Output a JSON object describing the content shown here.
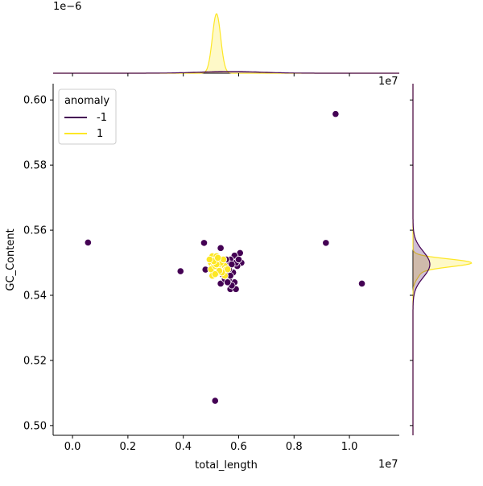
{
  "chart_data": {
    "type": "scatter",
    "title": "",
    "xlabel": "total_length",
    "ylabel": "GC_Content",
    "x_offset_label": "1e7",
    "y_offset_label": "",
    "top_marginal_offset_label": "1e−6",
    "right_marginal_offset_label": "1e7",
    "xlim": [
      -700000,
      11800000
    ],
    "ylim": [
      0.497,
      0.605
    ],
    "xticks": [
      {
        "value": 0,
        "label": "0.0"
      },
      {
        "value": 2000000,
        "label": "0.2"
      },
      {
        "value": 4000000,
        "label": "0.4"
      },
      {
        "value": 6000000,
        "label": "0.6"
      },
      {
        "value": 8000000,
        "label": "0.8"
      },
      {
        "value": 10000000,
        "label": "1.0"
      }
    ],
    "yticks": [
      {
        "value": 0.5,
        "label": "0.50"
      },
      {
        "value": 0.52,
        "label": "0.52"
      },
      {
        "value": 0.54,
        "label": "0.54"
      },
      {
        "value": 0.56,
        "label": "0.56"
      },
      {
        "value": 0.58,
        "label": "0.58"
      },
      {
        "value": 0.6,
        "label": "0.60"
      }
    ],
    "grid": false,
    "legend": {
      "title": "anomaly",
      "placement": "top-left"
    },
    "series": [
      {
        "name": "-1",
        "color": "#440154",
        "points": [
          [
            560000,
            0.5562
          ],
          [
            3900000,
            0.5474
          ],
          [
            9500000,
            0.5957
          ],
          [
            9150000,
            0.5561
          ],
          [
            10450000,
            0.5436
          ],
          [
            5150000,
            0.5076
          ],
          [
            4750000,
            0.5561
          ],
          [
            5350000,
            0.5545
          ],
          [
            4800000,
            0.5479
          ],
          [
            5350000,
            0.5436
          ],
          [
            5700000,
            0.5419
          ],
          [
            5900000,
            0.5419
          ],
          [
            6100000,
            0.55
          ],
          [
            6050000,
            0.553
          ],
          [
            5850000,
            0.5522
          ],
          [
            5950000,
            0.549
          ],
          [
            5700000,
            0.551
          ],
          [
            5800000,
            0.547
          ],
          [
            5850000,
            0.544
          ],
          [
            5650000,
            0.545
          ],
          [
            5750000,
            0.543
          ],
          [
            5600000,
            0.55
          ],
          [
            5550000,
            0.547
          ],
          [
            5450000,
            0.551
          ],
          [
            5500000,
            0.545
          ],
          [
            5300000,
            0.549
          ],
          [
            5250000,
            0.548
          ],
          [
            5650000,
            0.548
          ],
          [
            5550000,
            0.551
          ],
          [
            5900000,
            0.55
          ],
          [
            6000000,
            0.551
          ],
          [
            5600000,
            0.544
          ],
          [
            5700000,
            0.546
          ],
          [
            5400000,
            0.5465
          ],
          [
            5750000,
            0.5495
          ]
        ]
      },
      {
        "name": "1",
        "color": "#fde725",
        "points": [
          [
            5000000,
            0.55
          ],
          [
            5050000,
            0.552
          ],
          [
            5100000,
            0.549
          ],
          [
            5150000,
            0.551
          ],
          [
            5200000,
            0.548
          ],
          [
            5250000,
            0.55
          ],
          [
            5300000,
            0.549
          ],
          [
            5350000,
            0.547
          ],
          [
            5400000,
            0.55
          ],
          [
            5450000,
            0.548
          ],
          [
            5500000,
            0.549
          ],
          [
            5550000,
            0.548
          ],
          [
            5100000,
            0.547
          ],
          [
            5200000,
            0.552
          ],
          [
            5300000,
            0.551
          ],
          [
            5000000,
            0.548
          ],
          [
            5050000,
            0.546
          ],
          [
            5150000,
            0.549
          ],
          [
            5250000,
            0.547
          ],
          [
            5350000,
            0.55
          ],
          [
            5450000,
            0.551
          ],
          [
            5500000,
            0.546
          ],
          [
            5600000,
            0.548
          ],
          [
            5400000,
            0.547
          ],
          [
            5200000,
            0.5495
          ],
          [
            5100000,
            0.5505
          ],
          [
            5300000,
            0.5475
          ],
          [
            5150000,
            0.5465
          ],
          [
            4950000,
            0.551
          ],
          [
            5250000,
            0.5515
          ]
        ]
      }
    ],
    "marginal_x": {
      "series": [
        {
          "name": "1",
          "color": "#fde725",
          "center": 5200000,
          "sd": 150000
        },
        {
          "name": "-1",
          "color": "#440154",
          "center": 5700000,
          "sd": 1100000
        }
      ]
    },
    "marginal_y": {
      "series": [
        {
          "name": "1",
          "color": "#fde725",
          "center": 0.55,
          "sd": 0.0012
        },
        {
          "name": "-1",
          "color": "#440154",
          "center": 0.5495,
          "sd": 0.004
        }
      ]
    }
  }
}
